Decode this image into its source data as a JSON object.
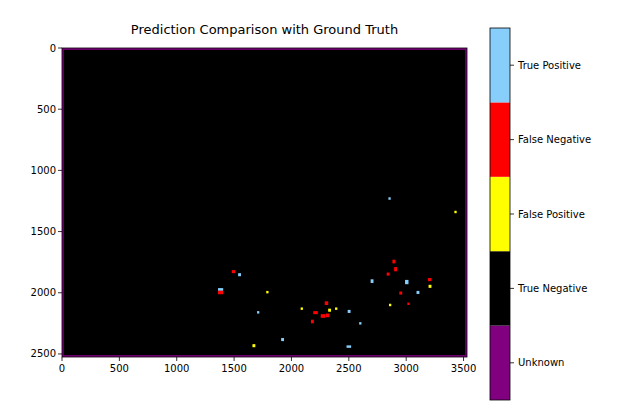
{
  "chart_data": {
    "type": "heatmap",
    "title": "Prediction Comparison with Ground Truth",
    "xlim": [
      0,
      3530
    ],
    "ylim": [
      2525,
      0
    ],
    "xticks": [
      0,
      500,
      1000,
      1500,
      2000,
      2500,
      3000,
      3500
    ],
    "yticks": [
      0,
      500,
      1000,
      1500,
      2000,
      2500
    ],
    "cells": [
      {
        "x": 0,
        "y": 0,
        "w": 3530,
        "h": 2525,
        "value": 0
      },
      {
        "x": 15,
        "y": 15,
        "w": 3500,
        "h": 2495,
        "value": 1
      },
      {
        "x": 1360,
        "y": 1962,
        "w": 45,
        "h": 22,
        "value": 4
      },
      {
        "x": 1360,
        "y": 1984,
        "w": 45,
        "h": 28,
        "value": 3
      },
      {
        "x": 1480,
        "y": 1815,
        "w": 30,
        "h": 25,
        "value": 3
      },
      {
        "x": 1535,
        "y": 1840,
        "w": 25,
        "h": 25,
        "value": 4
      },
      {
        "x": 1780,
        "y": 1985,
        "w": 20,
        "h": 20,
        "value": 2
      },
      {
        "x": 2845,
        "y": 1220,
        "w": 20,
        "h": 20,
        "value": 4
      },
      {
        "x": 3420,
        "y": 1330,
        "w": 20,
        "h": 20,
        "value": 2
      },
      {
        "x": 2880,
        "y": 1730,
        "w": 25,
        "h": 30,
        "value": 3
      },
      {
        "x": 2895,
        "y": 1790,
        "w": 25,
        "h": 35,
        "value": 3
      },
      {
        "x": 2830,
        "y": 1835,
        "w": 25,
        "h": 25,
        "value": 3
      },
      {
        "x": 2690,
        "y": 1890,
        "w": 25,
        "h": 30,
        "value": 4
      },
      {
        "x": 2990,
        "y": 1895,
        "w": 30,
        "h": 35,
        "value": 4
      },
      {
        "x": 3190,
        "y": 1880,
        "w": 30,
        "h": 25,
        "value": 3
      },
      {
        "x": 3195,
        "y": 1935,
        "w": 25,
        "h": 25,
        "value": 2
      },
      {
        "x": 3090,
        "y": 1985,
        "w": 25,
        "h": 25,
        "value": 4
      },
      {
        "x": 2940,
        "y": 1990,
        "w": 25,
        "h": 25,
        "value": 3
      },
      {
        "x": 2290,
        "y": 2070,
        "w": 30,
        "h": 30,
        "value": 3
      },
      {
        "x": 2190,
        "y": 2150,
        "w": 40,
        "h": 25,
        "value": 3
      },
      {
        "x": 2255,
        "y": 2175,
        "w": 40,
        "h": 30,
        "value": 3
      },
      {
        "x": 2300,
        "y": 2170,
        "w": 30,
        "h": 30,
        "value": 3
      },
      {
        "x": 2170,
        "y": 2220,
        "w": 25,
        "h": 30,
        "value": 3
      },
      {
        "x": 2320,
        "y": 2130,
        "w": 25,
        "h": 25,
        "value": 2
      },
      {
        "x": 2490,
        "y": 2140,
        "w": 25,
        "h": 25,
        "value": 4
      },
      {
        "x": 2380,
        "y": 2120,
        "w": 20,
        "h": 20,
        "value": 2
      },
      {
        "x": 2590,
        "y": 2240,
        "w": 20,
        "h": 20,
        "value": 4
      },
      {
        "x": 2850,
        "y": 2090,
        "w": 20,
        "h": 20,
        "value": 2
      },
      {
        "x": 3010,
        "y": 2080,
        "w": 20,
        "h": 20,
        "value": 3
      },
      {
        "x": 1660,
        "y": 2420,
        "w": 25,
        "h": 25,
        "value": 2
      },
      {
        "x": 1910,
        "y": 2370,
        "w": 25,
        "h": 25,
        "value": 4
      },
      {
        "x": 2480,
        "y": 2430,
        "w": 40,
        "h": 20,
        "value": 4
      },
      {
        "x": 1700,
        "y": 2150,
        "w": 20,
        "h": 20,
        "value": 4
      },
      {
        "x": 2080,
        "y": 2120,
        "w": 20,
        "h": 20,
        "value": 2
      }
    ],
    "colorbar": {
      "range": [
        -0.5,
        4.5
      ],
      "colors": [
        "#800080",
        "#000000",
        "#ffff00",
        "#ff0000",
        "#87cefa"
      ],
      "ticks": [
        {
          "value": 0,
          "label": "Unknown"
        },
        {
          "value": 1,
          "label": "True Negative"
        },
        {
          "value": 2,
          "label": "False Positive"
        },
        {
          "value": 3,
          "label": "False Negative"
        },
        {
          "value": 4,
          "label": "True Positive"
        }
      ]
    }
  }
}
